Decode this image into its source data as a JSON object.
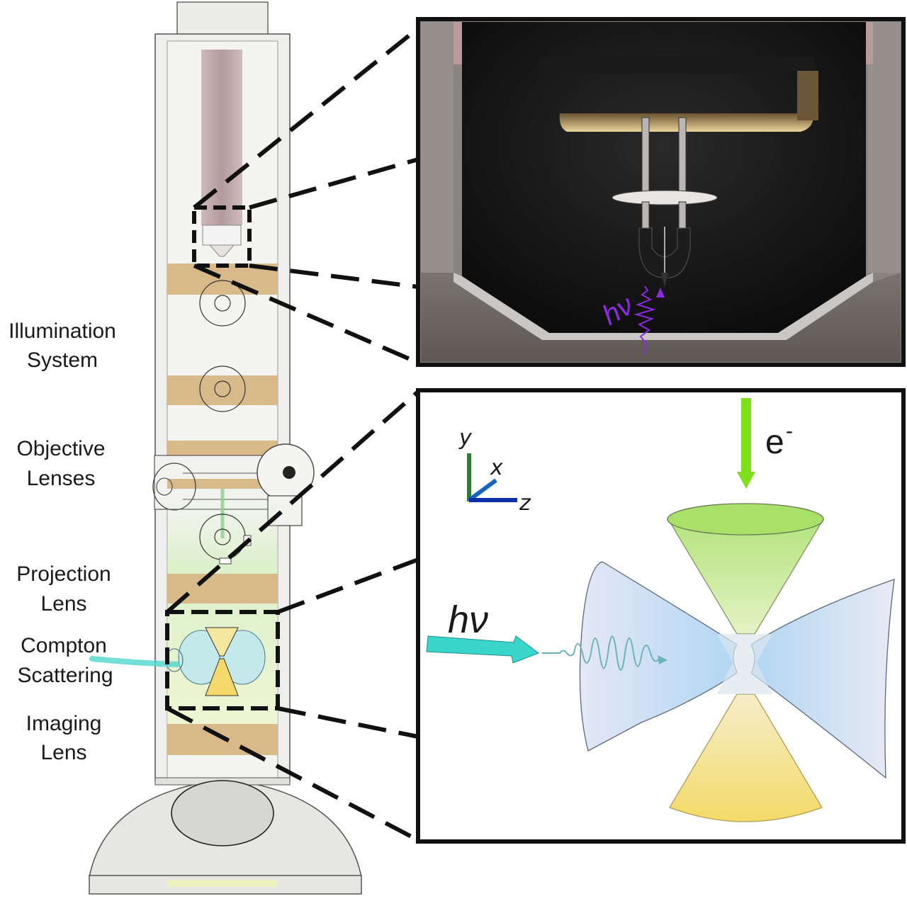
{
  "labels": {
    "illumination_1": "Illumination",
    "illumination_2": "System",
    "objective_1": "Objective",
    "objective_2": "Lenses",
    "projection_1": "Projection",
    "projection_2": "Lens",
    "compton_1": "Compton",
    "compton_2": "Scattering",
    "imaging_1": "Imaging",
    "imaging_2": "Lens"
  },
  "top_inset": {
    "photon_label": "hν"
  },
  "bottom_inset": {
    "axis_y": "y",
    "axis_x": "x",
    "axis_z": "z",
    "electron_label": "e",
    "electron_sup": "-",
    "photon_label": "hν"
  },
  "colors": {
    "lens_tan": "#d8b98a",
    "electron_green": "#7ee01a",
    "photon_cyan": "#3ad6cc",
    "laser_blue": "#a9cdee",
    "cone_green": "#bde58a",
    "cone_yellow": "#f7e07a",
    "axis_y": "#2e7d32",
    "axis_x": "#1565c0",
    "axis_z": "#0d2fa8",
    "wave_purple": "#8a2be2"
  }
}
